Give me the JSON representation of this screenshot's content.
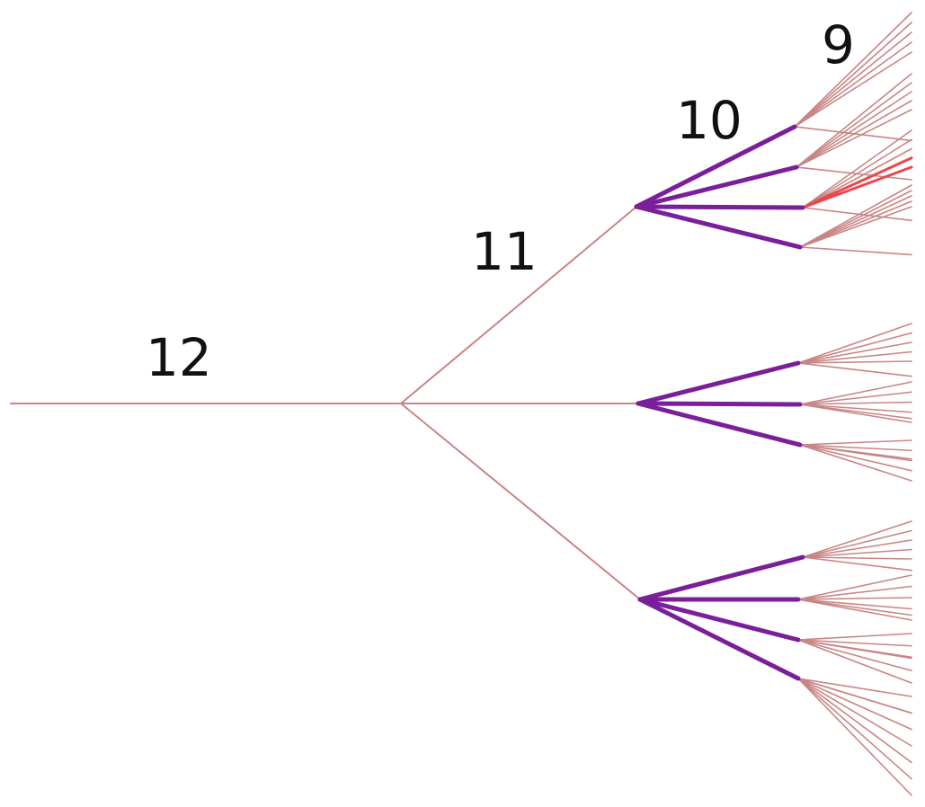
{
  "colors": {
    "thin_branch": "#c98585",
    "thick_branch": "#7a1f99",
    "highlight_branch": "#e8494d",
    "label": "#111111"
  },
  "labels": {
    "level_12": "12",
    "level_11": "11",
    "level_10": "10",
    "level_9": "9"
  },
  "tree": {
    "root_children": 3,
    "level_11_children": [
      4,
      3,
      4
    ]
  }
}
